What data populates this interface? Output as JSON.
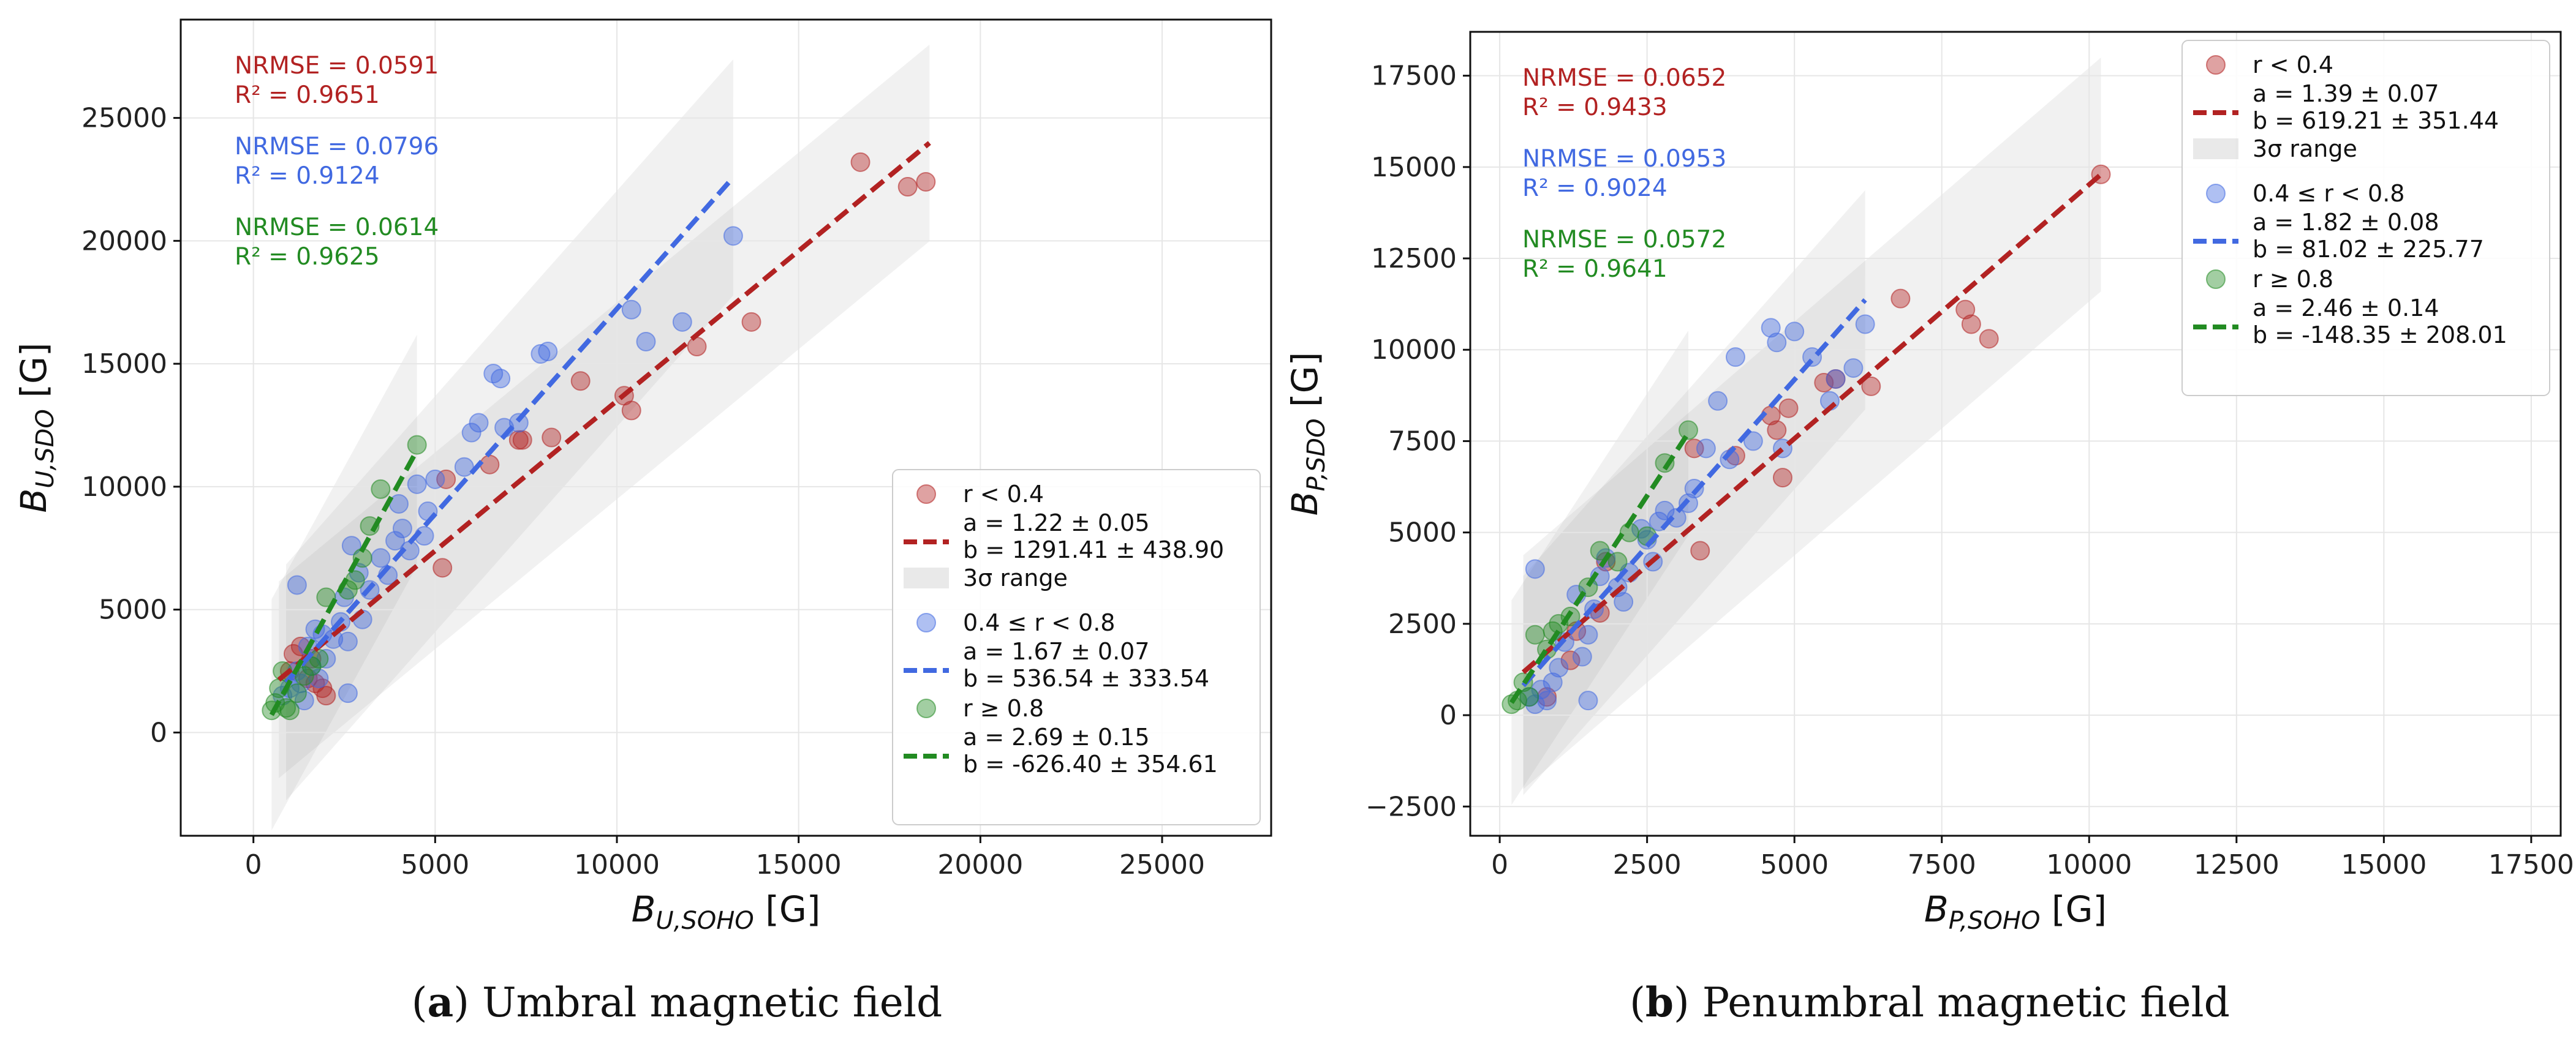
{
  "chart_data": [
    {
      "type": "scatter",
      "panel_letter": "a",
      "caption": "Umbral magnetic field",
      "xlabel": "B",
      "xlabel_sub": "U,SOHO",
      "xlabel_unit": "[G]",
      "ylabel": "B",
      "ylabel_sub": "U,SDO",
      "ylabel_unit": "[G]",
      "xlim": [
        -2000,
        28000
      ],
      "ylim": [
        -4200,
        29000
      ],
      "xticks": [
        0,
        5000,
        10000,
        15000,
        20000,
        25000
      ],
      "xtick_labels": [
        "0",
        "5000",
        "10000",
        "15000",
        "20000",
        "25000"
      ],
      "yticks": [
        0,
        5000,
        10000,
        15000,
        20000,
        25000
      ],
      "ytick_labels": [
        "0",
        "5000",
        "10000",
        "15000",
        "20000",
        "25000"
      ],
      "grid": true,
      "legend_location": "lower-right",
      "band_label": "3σ range",
      "series": [
        {
          "name": "r < 0.4",
          "color": "#b22222",
          "fit_label_a": "a = 1.22 ± 0.05",
          "fit_label_b": "b = 1291.41 ± 438.90",
          "a": 1.22,
          "b": 1291.41,
          "sigma3": 4000,
          "fit_x": [
            700,
            18600
          ],
          "nrmse": "NRMSE = 0.0591",
          "r2": "R² = 0.9651",
          "x": [
            1000,
            1300,
            1500,
            1700,
            1900,
            2000,
            1600,
            1100,
            5200,
            5300,
            6500,
            7300,
            7400,
            8200,
            9000,
            10200,
            10400,
            12200,
            13700,
            16700,
            18000,
            18500
          ],
          "y": [
            2500,
            3500,
            2200,
            2000,
            1800,
            1500,
            3000,
            3200,
            6700,
            10300,
            10900,
            11900,
            11900,
            12000,
            14300,
            13700,
            13100,
            15700,
            16700,
            23200,
            22200,
            22400
          ]
        },
        {
          "name": "0.4 ≤ r < 0.8",
          "color": "#4169e1",
          "fit_label_a": "a = 1.67 ± 0.07",
          "fit_label_b": "b = 536.54 ± 333.54",
          "a": 1.67,
          "b": 536.54,
          "sigma3": 4800,
          "fit_x": [
            900,
            13200
          ],
          "nrmse": "NRMSE = 0.0796",
          "r2": "R² = 0.9124",
          "x": [
            800,
            1000,
            1200,
            1300,
            1400,
            1500,
            1600,
            1700,
            1800,
            1900,
            2000,
            2200,
            2400,
            2500,
            2600,
            2700,
            2900,
            3000,
            3200,
            3500,
            3700,
            3900,
            4000,
            4100,
            4300,
            4500,
            4700,
            4800,
            5000,
            5800,
            6000,
            6200,
            6600,
            6800,
            6900,
            7300,
            7900,
            8100,
            10400,
            10800,
            11800,
            13200,
            1200,
            2600
          ],
          "y": [
            1500,
            1800,
            2500,
            2000,
            1300,
            3500,
            2700,
            4200,
            2200,
            4000,
            3000,
            3800,
            4500,
            5500,
            3700,
            7600,
            6500,
            4600,
            5800,
            7100,
            6400,
            7800,
            9300,
            8300,
            7400,
            10100,
            8000,
            9000,
            10300,
            10800,
            12200,
            12600,
            14600,
            14400,
            12400,
            12600,
            15400,
            15500,
            17200,
            15900,
            16700,
            20200,
            6000,
            1600
          ]
        },
        {
          "name": "r ≥ 0.8",
          "color": "#228b22",
          "fit_label_a": "a = 2.69 ± 0.15",
          "fit_label_b": "b = -626.40 ± 354.61",
          "a": 2.69,
          "b": -626.4,
          "sigma3": 4700,
          "fit_x": [
            500,
            4500
          ],
          "nrmse": "NRMSE = 0.0614",
          "r2": "R² = 0.9625",
          "x": [
            500,
            600,
            700,
            800,
            900,
            1000,
            1200,
            1400,
            1600,
            1800,
            2000,
            2600,
            2800,
            3000,
            3200,
            3500,
            4500
          ],
          "y": [
            900,
            1200,
            1800,
            2500,
            1000,
            900,
            1600,
            2300,
            2700,
            3000,
            5500,
            5800,
            6200,
            7100,
            8400,
            9900,
            11700
          ]
        }
      ]
    },
    {
      "type": "scatter",
      "panel_letter": "b",
      "caption": "Penumbral magnetic field",
      "xlabel": "B",
      "xlabel_sub": "P,SOHO",
      "xlabel_unit": "[G]",
      "ylabel": "B",
      "ylabel_sub": "P,SDO",
      "ylabel_unit": "[G]",
      "xlim": [
        -500,
        18000
      ],
      "ylim": [
        -3300,
        18700
      ],
      "xticks": [
        0,
        2500,
        5000,
        7500,
        10000,
        12500,
        15000,
        17500
      ],
      "xtick_labels": [
        "0",
        "2500",
        "5000",
        "7500",
        "10000",
        "12500",
        "15000",
        "17500"
      ],
      "yticks": [
        -2500,
        0,
        2500,
        5000,
        7500,
        10000,
        12500,
        15000,
        17500
      ],
      "ytick_labels": [
        "−2500",
        "0",
        "2500",
        "5000",
        "7500",
        "10000",
        "12500",
        "15000",
        "17500"
      ],
      "grid": true,
      "legend_location": "top-right",
      "band_label": "3σ range",
      "series": [
        {
          "name": "r < 0.4",
          "color": "#b22222",
          "fit_label_a": "a = 1.39 ± 0.07",
          "fit_label_b": "b = 619.21 ± 351.44",
          "a": 1.39,
          "b": 619.21,
          "sigma3": 3200,
          "fit_x": [
            400,
            10200
          ],
          "nrmse": "NRMSE = 0.0652",
          "r2": "R² = 0.9433",
          "x": [
            800,
            1200,
            1300,
            1700,
            1800,
            3300,
            3400,
            4000,
            4600,
            4700,
            4800,
            4900,
            5500,
            5700,
            6300,
            6800,
            7900,
            8000,
            8300,
            10200
          ],
          "y": [
            500,
            1500,
            2300,
            2800,
            4200,
            7300,
            4500,
            7100,
            8200,
            7800,
            6500,
            8400,
            9100,
            9200,
            9000,
            11400,
            11100,
            10700,
            10300,
            14800
          ]
        },
        {
          "name": "0.4 ≤ r < 0.8",
          "color": "#4169e1",
          "fit_label_a": "a = 1.82 ± 0.08",
          "fit_label_b": "b = 81.02 ± 225.77",
          "a": 1.82,
          "b": 81.02,
          "sigma3": 3000,
          "fit_x": [
            400,
            6200
          ],
          "nrmse": "NRMSE = 0.0953",
          "r2": "R² = 0.9024",
          "x": [
            500,
            600,
            700,
            800,
            900,
            1000,
            1100,
            1300,
            1400,
            1500,
            1600,
            1700,
            1800,
            2000,
            2100,
            2200,
            2400,
            2500,
            2600,
            2700,
            2800,
            3000,
            3200,
            3300,
            3500,
            3700,
            3900,
            4000,
            4300,
            4600,
            4700,
            4800,
            5000,
            5300,
            5600,
            5700,
            6000,
            6200,
            600,
            1500
          ],
          "y": [
            500,
            300,
            700,
            400,
            900,
            1300,
            2000,
            3300,
            1600,
            2200,
            2900,
            3800,
            4300,
            3500,
            3100,
            3900,
            5100,
            4800,
            4200,
            5300,
            5600,
            5400,
            5800,
            6200,
            7300,
            8600,
            7000,
            9800,
            7500,
            10600,
            10200,
            7300,
            10500,
            9800,
            8600,
            9200,
            9500,
            10700,
            4000,
            400
          ]
        },
        {
          "name": "r ≥ 0.8",
          "color": "#228b22",
          "fit_label_a": "a = 2.46 ± 0.14",
          "fit_label_b": "b = -148.35 ± 208.01",
          "a": 2.46,
          "b": -148.35,
          "sigma3": 2800,
          "fit_x": [
            200,
            3200
          ],
          "nrmse": "NRMSE = 0.0572",
          "r2": "R² = 0.9641",
          "x": [
            200,
            300,
            400,
            500,
            600,
            800,
            900,
            1000,
            1200,
            1500,
            1700,
            2000,
            2200,
            2500,
            2800,
            3200
          ],
          "y": [
            300,
            400,
            900,
            500,
            2200,
            1800,
            2300,
            2500,
            2700,
            3500,
            4500,
            4200,
            5000,
            4900,
            6900,
            7800
          ]
        }
      ]
    }
  ]
}
